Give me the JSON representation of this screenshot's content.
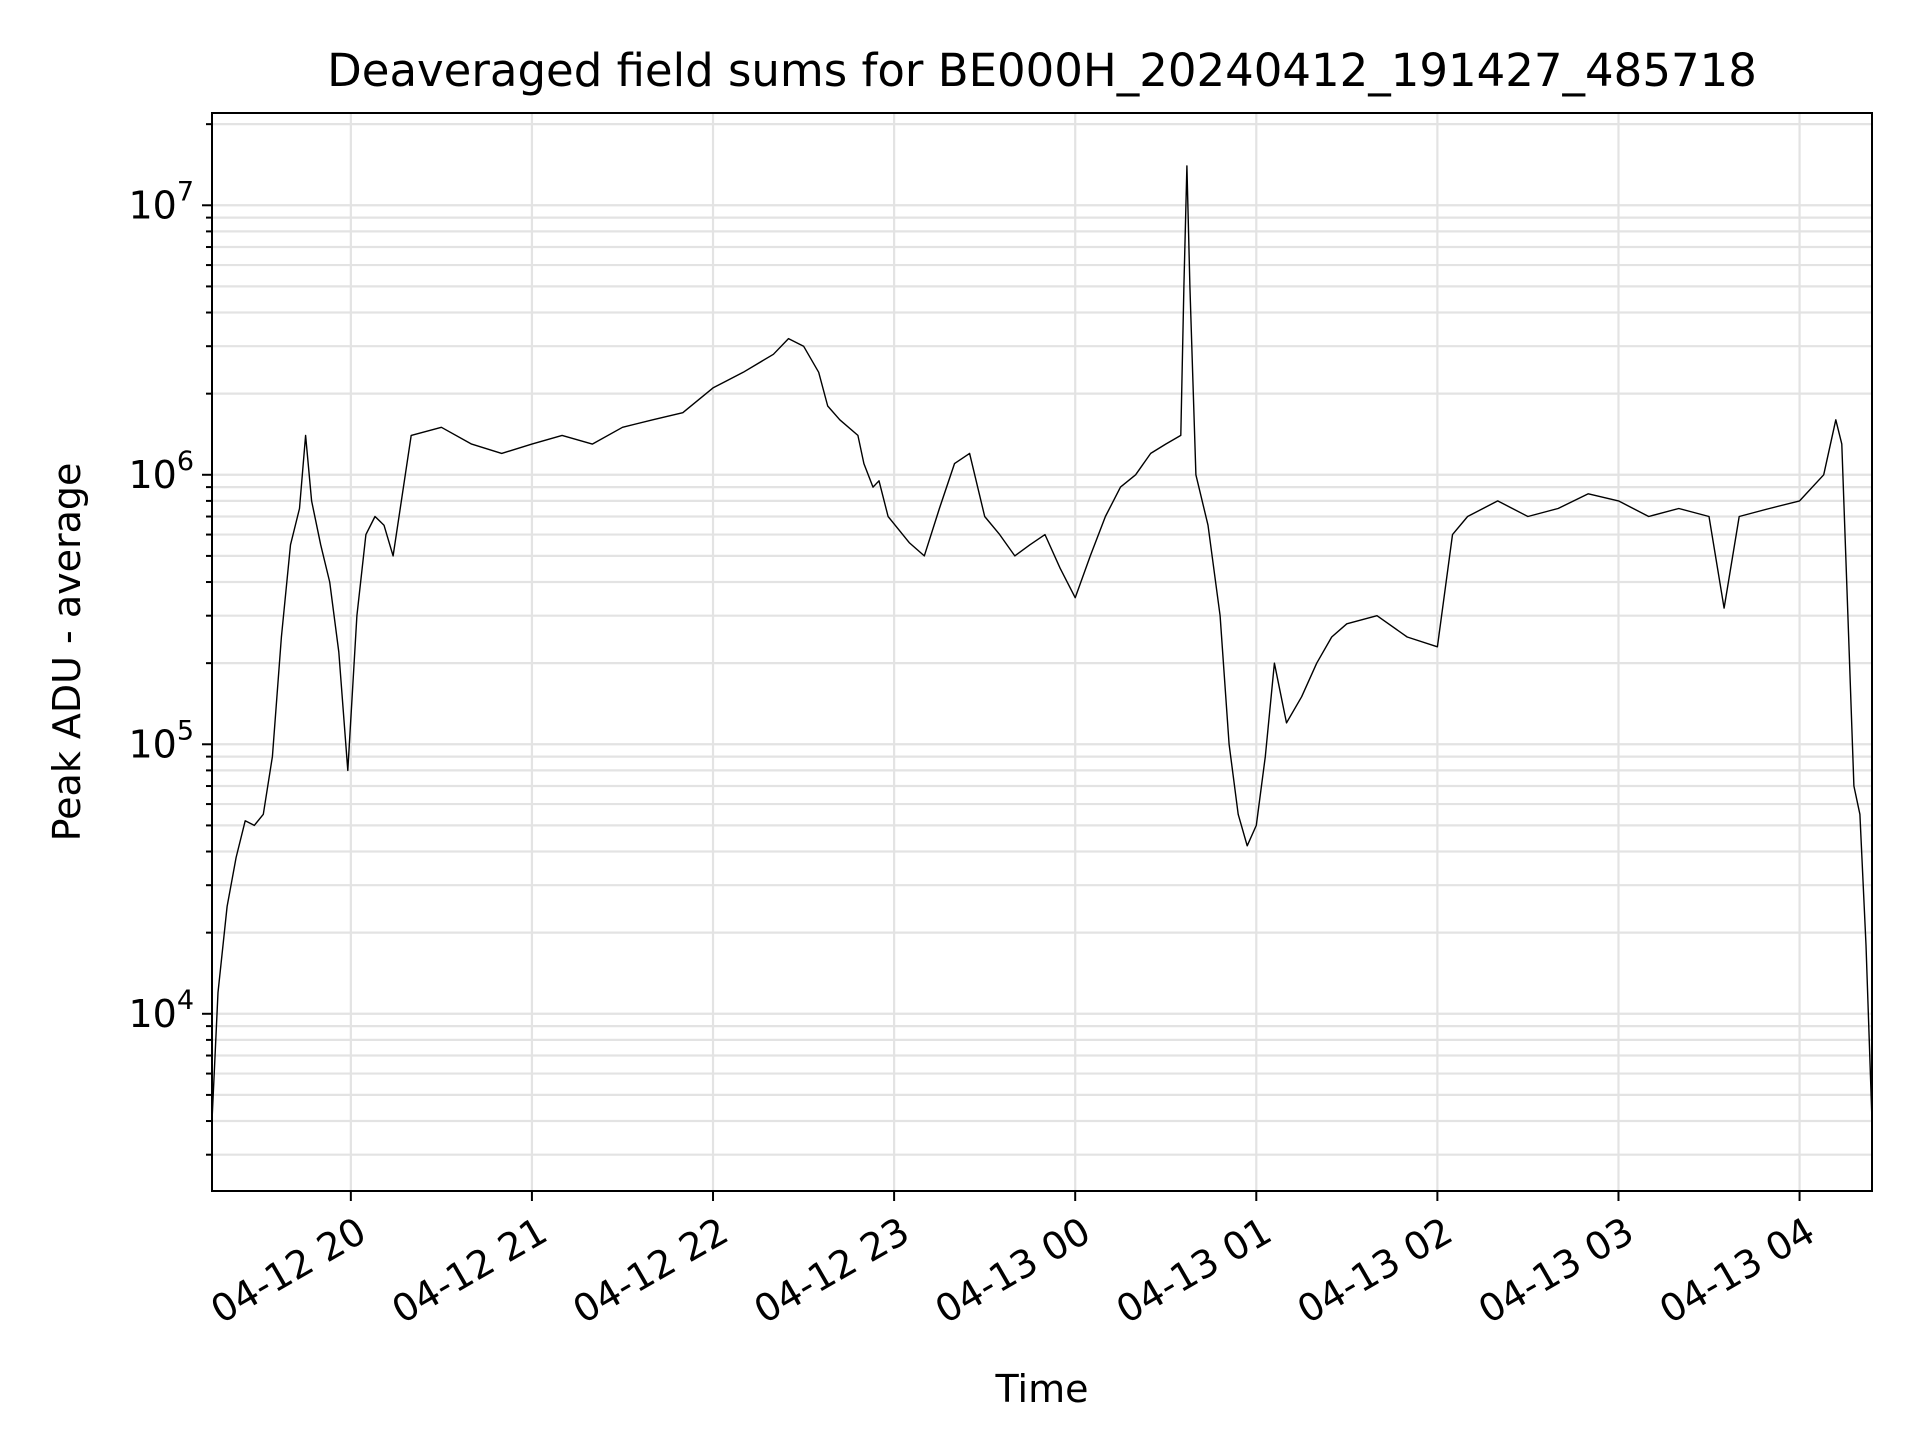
{
  "chart_data": {
    "type": "line",
    "title": "Deaveraged field sums for BE000H_20240412_191427_485718",
    "xlabel": "Time",
    "ylabel": "Peak ADU - average",
    "yscale": "log",
    "xlim": [
      "2024-04-12 19:14",
      "2024-04-13 04:24"
    ],
    "ylim": [
      2200,
      22000000
    ],
    "grid": true,
    "x_ticks": [
      {
        "value": "2024-04-12 20:00",
        "label": "04-12 20"
      },
      {
        "value": "2024-04-12 21:00",
        "label": "04-12 21"
      },
      {
        "value": "2024-04-12 22:00",
        "label": "04-12 22"
      },
      {
        "value": "2024-04-12 23:00",
        "label": "04-12 23"
      },
      {
        "value": "2024-04-13 00:00",
        "label": "04-13 00"
      },
      {
        "value": "2024-04-13 01:00",
        "label": "04-13 01"
      },
      {
        "value": "2024-04-13 02:00",
        "label": "04-13 02"
      },
      {
        "value": "2024-04-13 03:00",
        "label": "04-13 03"
      },
      {
        "value": "2024-04-13 04:00",
        "label": "04-13 04"
      }
    ],
    "y_ticks": [
      {
        "value": 10000,
        "base": "10",
        "exp": "4"
      },
      {
        "value": 100000,
        "base": "10",
        "exp": "5"
      },
      {
        "value": 1000000,
        "base": "10",
        "exp": "6"
      },
      {
        "value": 10000000,
        "base": "10",
        "exp": "7"
      }
    ],
    "series": [
      {
        "color": "#000000",
        "x": [
          "2024-04-12 19:14",
          "2024-04-12 19:16",
          "2024-04-12 19:19",
          "2024-04-12 19:22",
          "2024-04-12 19:25",
          "2024-04-12 19:28",
          "2024-04-12 19:31",
          "2024-04-12 19:34",
          "2024-04-12 19:37",
          "2024-04-12 19:40",
          "2024-04-12 19:43",
          "2024-04-12 19:45",
          "2024-04-12 19:47",
          "2024-04-12 19:50",
          "2024-04-12 19:53",
          "2024-04-12 19:56",
          "2024-04-12 19:59",
          "2024-04-12 20:02",
          "2024-04-12 20:05",
          "2024-04-12 20:08",
          "2024-04-12 20:11",
          "2024-04-12 20:14",
          "2024-04-12 20:20",
          "2024-04-12 20:30",
          "2024-04-12 20:40",
          "2024-04-12 20:50",
          "2024-04-12 21:00",
          "2024-04-12 21:10",
          "2024-04-12 21:20",
          "2024-04-12 21:30",
          "2024-04-12 21:40",
          "2024-04-12 21:50",
          "2024-04-12 22:00",
          "2024-04-12 22:10",
          "2024-04-12 22:20",
          "2024-04-12 22:25",
          "2024-04-12 22:30",
          "2024-04-12 22:35",
          "2024-04-12 22:38",
          "2024-04-12 22:42",
          "2024-04-12 22:48",
          "2024-04-12 22:50",
          "2024-04-12 22:53",
          "2024-04-12 22:55",
          "2024-04-12 22:58",
          "2024-04-12 23:05",
          "2024-04-12 23:10",
          "2024-04-12 23:15",
          "2024-04-12 23:20",
          "2024-04-12 23:25",
          "2024-04-12 23:30",
          "2024-04-12 23:35",
          "2024-04-12 23:40",
          "2024-04-12 23:45",
          "2024-04-12 23:50",
          "2024-04-12 23:55",
          "2024-04-13 00:00",
          "2024-04-13 00:05",
          "2024-04-13 00:10",
          "2024-04-13 00:15",
          "2024-04-13 00:20",
          "2024-04-13 00:25",
          "2024-04-13 00:30",
          "2024-04-13 00:35",
          "2024-04-13 00:36",
          "2024-04-13 00:37",
          "2024-04-13 00:38",
          "2024-04-13 00:40",
          "2024-04-13 00:44",
          "2024-04-13 00:48",
          "2024-04-13 00:51",
          "2024-04-13 00:54",
          "2024-04-13 00:57",
          "2024-04-13 01:00",
          "2024-04-13 01:03",
          "2024-04-13 01:06",
          "2024-04-13 01:10",
          "2024-04-13 01:15",
          "2024-04-13 01:20",
          "2024-04-13 01:25",
          "2024-04-13 01:30",
          "2024-04-13 01:40",
          "2024-04-13 01:50",
          "2024-04-13 02:00",
          "2024-04-13 02:05",
          "2024-04-13 02:10",
          "2024-04-13 02:20",
          "2024-04-13 02:30",
          "2024-04-13 02:40",
          "2024-04-13 02:50",
          "2024-04-13 03:00",
          "2024-04-13 03:10",
          "2024-04-13 03:20",
          "2024-04-13 03:30",
          "2024-04-13 03:35",
          "2024-04-13 03:40",
          "2024-04-13 03:50",
          "2024-04-13 04:00",
          "2024-04-13 04:08",
          "2024-04-13 04:12",
          "2024-04-13 04:14",
          "2024-04-13 04:16",
          "2024-04-13 04:18",
          "2024-04-13 04:20",
          "2024-04-13 04:22",
          "2024-04-13 04:24"
        ],
        "y": [
          4000,
          12000,
          25000,
          38000,
          52000,
          50000,
          55000,
          90000,
          250000,
          550000,
          750000,
          1400000,
          800000,
          550000,
          400000,
          220000,
          80000,
          300000,
          600000,
          700000,
          650000,
          500000,
          1400000,
          1500000,
          1300000,
          1200000,
          1300000,
          1400000,
          1300000,
          1500000,
          1600000,
          1700000,
          2100000,
          2400000,
          2800000,
          3200000,
          3000000,
          2400000,
          1800000,
          1600000,
          1400000,
          1100000,
          900000,
          950000,
          700000,
          560000,
          500000,
          750000,
          1100000,
          1200000,
          700000,
          600000,
          500000,
          550000,
          600000,
          450000,
          350000,
          500000,
          700000,
          900000,
          1000000,
          1200000,
          1300000,
          1400000,
          5000000,
          14000000,
          5000000,
          1000000,
          650000,
          300000,
          100000,
          55000,
          42000,
          50000,
          90000,
          200000,
          120000,
          150000,
          200000,
          250000,
          280000,
          300000,
          250000,
          230000,
          600000,
          700000,
          800000,
          700000,
          750000,
          850000,
          800000,
          700000,
          750000,
          700000,
          320000,
          700000,
          750000,
          800000,
          1000000,
          1600000,
          1300000,
          300000,
          70000,
          55000,
          18000,
          4000
        ]
      }
    ]
  }
}
